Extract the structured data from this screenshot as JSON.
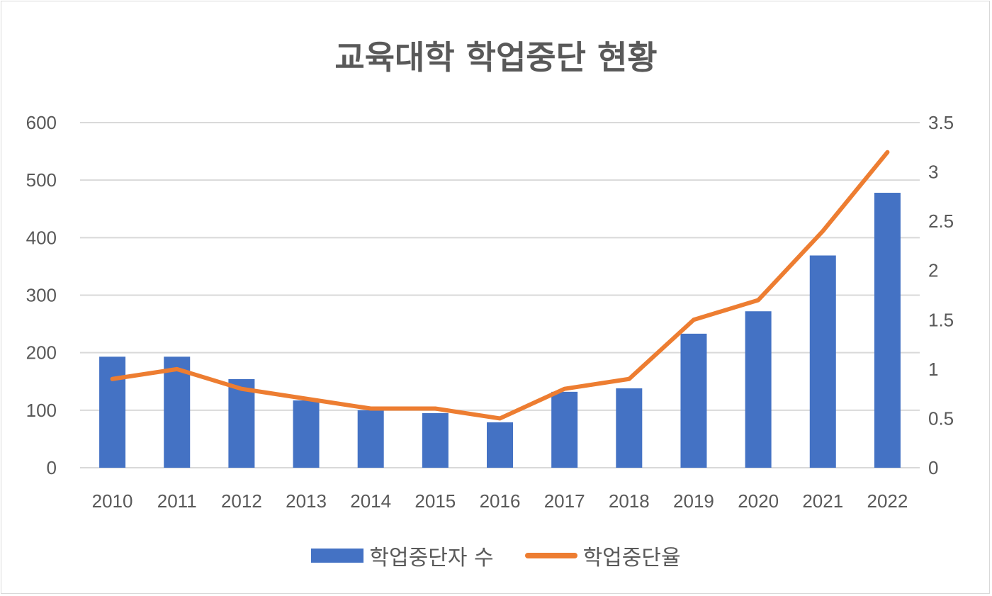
{
  "chart_data": {
    "type": "bar+line",
    "title": "교육대학 학업중단 현황",
    "categories": [
      "2010",
      "2011",
      "2012",
      "2013",
      "2014",
      "2015",
      "2016",
      "2017",
      "2018",
      "2019",
      "2020",
      "2021",
      "2022"
    ],
    "series": [
      {
        "name": "학업중단자 수",
        "type": "bar",
        "axis": "left",
        "color": "#4472c4",
        "values": [
          193,
          193,
          154,
          117,
          100,
          95,
          79,
          132,
          138,
          233,
          272,
          369,
          478
        ]
      },
      {
        "name": "학업중단율",
        "type": "line",
        "axis": "right",
        "color": "#ed7d31",
        "values": [
          0.9,
          1.0,
          0.8,
          0.7,
          0.6,
          0.6,
          0.5,
          0.8,
          0.9,
          1.5,
          1.7,
          2.4,
          3.2
        ]
      }
    ],
    "y_left": {
      "range": [
        0,
        600
      ],
      "ticks": [
        "0",
        "100",
        "200",
        "300",
        "400",
        "500",
        "600"
      ]
    },
    "y_right": {
      "range": [
        0,
        3.5
      ],
      "ticks": [
        "0",
        "0.5",
        "1",
        "1.5",
        "2",
        "2.5",
        "3",
        "3.5"
      ]
    },
    "grid": true,
    "legend": "bottom"
  }
}
